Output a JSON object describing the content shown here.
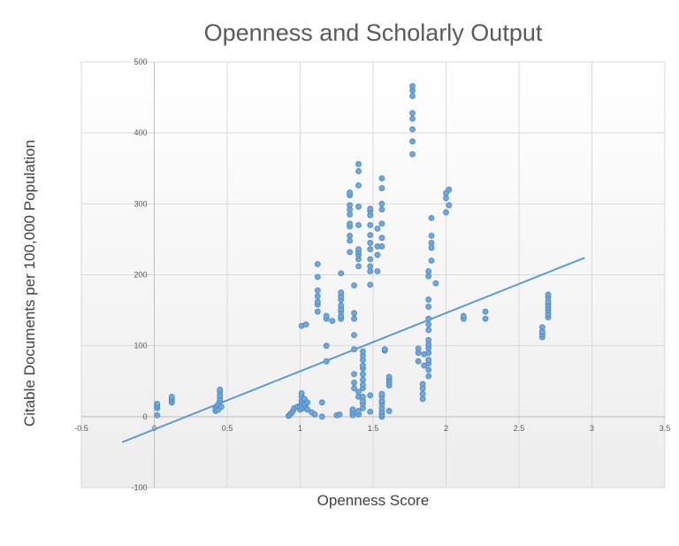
{
  "chart_data": {
    "type": "scatter",
    "title": "Openness and Scholarly Output",
    "xlabel": "Openness Score",
    "ylabel": "Citable Documents per 100,000 Population",
    "xlim": [
      -0.5,
      3.5
    ],
    "ylim": [
      -100,
      500
    ],
    "xticks": [
      -0.5,
      0,
      0.5,
      1,
      1.5,
      2,
      2.5,
      3,
      3.5
    ],
    "yticks": [
      -100,
      0,
      100,
      200,
      300,
      400,
      500
    ],
    "xtick_labels": [
      "-0.5",
      "0",
      "0.5",
      "1",
      "1.5",
      "2",
      "2.5",
      "3",
      "3.5"
    ],
    "ytick_labels": [
      "-100",
      "0",
      "100",
      "200",
      "300",
      "400",
      "500"
    ],
    "grid": true,
    "legend": "none",
    "colors": {
      "points": "#6fa8dc",
      "point_edge": "#4a86c5",
      "trendline": "#5b9bd5",
      "grid": "#d9d9d9",
      "axis": "#bfbfbf"
    },
    "trendline": {
      "x": [
        -0.22,
        2.95
      ],
      "y": [
        -36,
        224
      ]
    },
    "points": [
      [
        0.02,
        2
      ],
      [
        0.02,
        12
      ],
      [
        0.02,
        15
      ],
      [
        0.02,
        18
      ],
      [
        0.12,
        20
      ],
      [
        0.12,
        23
      ],
      [
        0.12,
        26
      ],
      [
        0.12,
        28
      ],
      [
        0.42,
        8
      ],
      [
        0.42,
        12
      ],
      [
        0.43,
        15
      ],
      [
        0.44,
        18
      ],
      [
        0.45,
        22
      ],
      [
        0.45,
        26
      ],
      [
        0.45,
        30
      ],
      [
        0.45,
        35
      ],
      [
        0.45,
        38
      ],
      [
        0.44,
        10
      ],
      [
        0.46,
        14
      ],
      [
        0.92,
        1
      ],
      [
        0.93,
        3
      ],
      [
        0.94,
        5
      ],
      [
        0.95,
        8
      ],
      [
        0.96,
        12
      ],
      [
        0.98,
        14
      ],
      [
        1.0,
        10
      ],
      [
        1.0,
        15
      ],
      [
        1.01,
        18
      ],
      [
        1.01,
        22
      ],
      [
        1.01,
        28
      ],
      [
        1.01,
        33
      ],
      [
        1.01,
        128
      ],
      [
        1.02,
        12
      ],
      [
        1.02,
        20
      ],
      [
        1.03,
        25
      ],
      [
        1.03,
        17
      ],
      [
        1.04,
        12
      ],
      [
        1.04,
        130
      ],
      [
        1.05,
        20
      ],
      [
        1.05,
        10
      ],
      [
        1.08,
        6
      ],
      [
        1.1,
        3
      ],
      [
        1.12,
        148
      ],
      [
        1.12,
        158
      ],
      [
        1.12,
        162
      ],
      [
        1.12,
        170
      ],
      [
        1.12,
        178
      ],
      [
        1.12,
        197
      ],
      [
        1.12,
        215
      ],
      [
        1.15,
        0
      ],
      [
        1.15,
        20
      ],
      [
        1.18,
        78
      ],
      [
        1.18,
        100
      ],
      [
        1.18,
        138
      ],
      [
        1.18,
        142
      ],
      [
        1.22,
        135
      ],
      [
        1.25,
        2
      ],
      [
        1.27,
        3
      ],
      [
        1.28,
        138
      ],
      [
        1.28,
        142
      ],
      [
        1.28,
        148
      ],
      [
        1.28,
        152
      ],
      [
        1.28,
        157
      ],
      [
        1.28,
        165
      ],
      [
        1.28,
        170
      ],
      [
        1.28,
        175
      ],
      [
        1.28,
        202
      ],
      [
        1.34,
        232
      ],
      [
        1.34,
        248
      ],
      [
        1.34,
        255
      ],
      [
        1.34,
        268
      ],
      [
        1.34,
        272
      ],
      [
        1.34,
        285
      ],
      [
        1.34,
        292
      ],
      [
        1.34,
        298
      ],
      [
        1.34,
        312
      ],
      [
        1.34,
        316
      ],
      [
        1.36,
        2
      ],
      [
        1.36,
        6
      ],
      [
        1.36,
        10
      ],
      [
        1.37,
        40
      ],
      [
        1.37,
        48
      ],
      [
        1.37,
        60
      ],
      [
        1.37,
        95
      ],
      [
        1.37,
        115
      ],
      [
        1.37,
        138
      ],
      [
        1.37,
        146
      ],
      [
        1.37,
        185
      ],
      [
        1.4,
        3
      ],
      [
        1.4,
        8
      ],
      [
        1.4,
        28
      ],
      [
        1.4,
        35
      ],
      [
        1.4,
        212
      ],
      [
        1.4,
        222
      ],
      [
        1.4,
        228
      ],
      [
        1.4,
        232
      ],
      [
        1.4,
        236
      ],
      [
        1.4,
        270
      ],
      [
        1.4,
        296
      ],
      [
        1.4,
        326
      ],
      [
        1.4,
        346
      ],
      [
        1.4,
        356
      ],
      [
        1.43,
        12
      ],
      [
        1.43,
        18
      ],
      [
        1.43,
        22
      ],
      [
        1.43,
        28
      ],
      [
        1.43,
        40
      ],
      [
        1.43,
        45
      ],
      [
        1.43,
        52
      ],
      [
        1.43,
        60
      ],
      [
        1.43,
        68
      ],
      [
        1.43,
        72
      ],
      [
        1.43,
        80
      ],
      [
        1.43,
        86
      ],
      [
        1.43,
        92
      ],
      [
        1.48,
        30
      ],
      [
        1.48,
        186
      ],
      [
        1.48,
        205
      ],
      [
        1.48,
        212
      ],
      [
        1.48,
        222
      ],
      [
        1.48,
        236
      ],
      [
        1.48,
        245
      ],
      [
        1.48,
        256
      ],
      [
        1.48,
        270
      ],
      [
        1.48,
        284
      ],
      [
        1.48,
        290
      ],
      [
        1.48,
        293
      ],
      [
        1.48,
        7
      ],
      [
        1.53,
        205
      ],
      [
        1.53,
        228
      ],
      [
        1.53,
        240
      ],
      [
        1.53,
        265
      ],
      [
        1.56,
        0
      ],
      [
        1.56,
        3
      ],
      [
        1.56,
        7
      ],
      [
        1.56,
        12
      ],
      [
        1.56,
        18
      ],
      [
        1.56,
        22
      ],
      [
        1.56,
        28
      ],
      [
        1.56,
        32
      ],
      [
        1.56,
        240
      ],
      [
        1.56,
        252
      ],
      [
        1.56,
        272
      ],
      [
        1.56,
        292
      ],
      [
        1.56,
        300
      ],
      [
        1.56,
        322
      ],
      [
        1.56,
        336
      ],
      [
        1.58,
        93
      ],
      [
        1.58,
        95
      ],
      [
        1.61,
        8
      ],
      [
        1.61,
        44
      ],
      [
        1.61,
        48
      ],
      [
        1.61,
        52
      ],
      [
        1.61,
        56
      ],
      [
        1.77,
        370
      ],
      [
        1.77,
        388
      ],
      [
        1.77,
        405
      ],
      [
        1.77,
        420
      ],
      [
        1.77,
        428
      ],
      [
        1.77,
        452
      ],
      [
        1.77,
        460
      ],
      [
        1.77,
        466
      ],
      [
        1.81,
        78
      ],
      [
        1.81,
        90
      ],
      [
        1.81,
        96
      ],
      [
        1.84,
        25
      ],
      [
        1.84,
        32
      ],
      [
        1.84,
        40
      ],
      [
        1.84,
        46
      ],
      [
        1.85,
        72
      ],
      [
        1.85,
        88
      ],
      [
        1.88,
        57
      ],
      [
        1.88,
        66
      ],
      [
        1.88,
        75
      ],
      [
        1.88,
        80
      ],
      [
        1.88,
        90
      ],
      [
        1.88,
        97
      ],
      [
        1.88,
        102
      ],
      [
        1.88,
        108
      ],
      [
        1.88,
        122
      ],
      [
        1.88,
        130
      ],
      [
        1.88,
        138
      ],
      [
        1.88,
        155
      ],
      [
        1.88,
        165
      ],
      [
        1.88,
        198
      ],
      [
        1.88,
        205
      ],
      [
        1.9,
        220
      ],
      [
        1.9,
        238
      ],
      [
        1.9,
        245
      ],
      [
        1.9,
        255
      ],
      [
        1.9,
        280
      ],
      [
        1.93,
        188
      ],
      [
        2.0,
        288
      ],
      [
        2.0,
        308
      ],
      [
        2.0,
        315
      ],
      [
        2.02,
        298
      ],
      [
        2.02,
        320
      ],
      [
        2.12,
        138
      ],
      [
        2.12,
        142
      ],
      [
        2.27,
        138
      ],
      [
        2.27,
        148
      ],
      [
        2.66,
        112
      ],
      [
        2.66,
        116
      ],
      [
        2.66,
        120
      ],
      [
        2.66,
        126
      ],
      [
        2.7,
        140
      ],
      [
        2.7,
        145
      ],
      [
        2.7,
        150
      ],
      [
        2.7,
        154
      ],
      [
        2.7,
        158
      ],
      [
        2.7,
        162
      ],
      [
        2.7,
        168
      ],
      [
        2.7,
        172
      ]
    ]
  }
}
